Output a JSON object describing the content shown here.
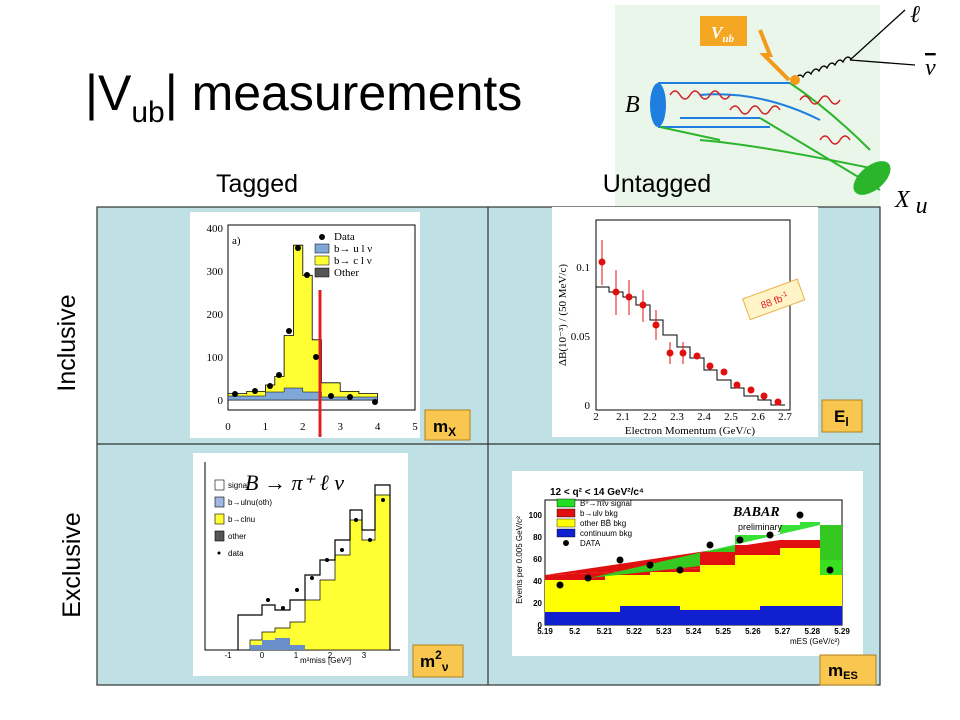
{
  "title": {
    "main": "|V",
    "sub": "ub",
    "end": "| measurements"
  },
  "columns": [
    "Tagged",
    "Untagged"
  ],
  "rows": [
    "Inclusive",
    "Exclusive"
  ],
  "diagram": {
    "vertex": "V",
    "vertex_sub": "ub",
    "lepton": "ℓ",
    "neutrino": "ν",
    "meson": "B",
    "hadron": "X",
    "hadron_sub": "u"
  },
  "panels": [
    {
      "label": "m",
      "label_sub": "X",
      "tag": "a)",
      "legend": [
        "Data",
        "b→ u l ν",
        "b→ c l ν",
        "Other"
      ],
      "yticks": [
        400,
        300,
        200,
        100,
        0
      ],
      "xticks": [
        0,
        1,
        2,
        3,
        4,
        5
      ]
    },
    {
      "label": "E",
      "label_sub": "l",
      "lumi": "88 fb",
      "lumi_sup": "-1",
      "ylabel": "ΔB(10⁻³) / (50 MeV/c)",
      "xlabel": "Electron Momentum (GeV/c)",
      "yticks": [
        0.1,
        0.05,
        0
      ],
      "xticks": [
        2,
        2.1,
        2.2,
        2.3,
        2.4,
        2.5,
        2.6,
        2.7
      ]
    },
    {
      "label": "m",
      "label_sup": "2",
      "label_sub": "ν",
      "title": "B → π⁺ ℓ ν",
      "legend": [
        "signal",
        "b→ulnu(oth)",
        "b→clnu",
        "other",
        "data"
      ],
      "xticks": [
        -1,
        0,
        1,
        2,
        3
      ],
      "xlabel": "m²miss [GeV²]"
    },
    {
      "label": "m",
      "label_sub": "ES",
      "cut": "12 < q² < 14 GeV²/c⁴",
      "legend": [
        "B⁰→πℓν signal",
        "b→ulν bkg",
        "other BB̄ bkg",
        "continuum bkg",
        "DATA"
      ],
      "experiment": "BABAR",
      "status": "preliminary",
      "ylabel": "Events per 0.005 GeV/c²",
      "yticks": [
        0,
        20,
        40,
        60,
        80,
        100
      ],
      "xticks": [
        5.19,
        5.2,
        5.21,
        5.22,
        5.23,
        5.24,
        5.25,
        5.26,
        5.27,
        5.28,
        5.29
      ],
      "xlabel": "mES (GeV/c²)"
    }
  ]
}
